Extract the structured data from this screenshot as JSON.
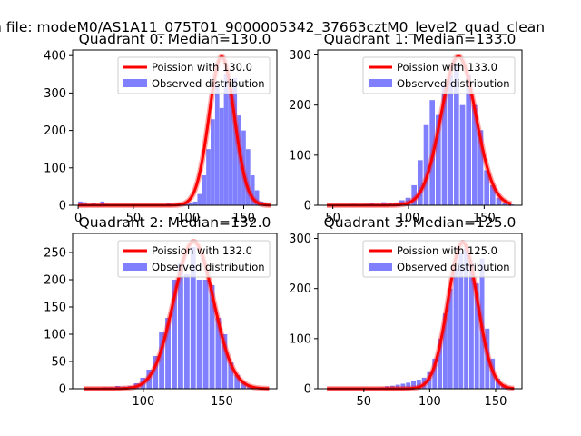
{
  "figure": {
    "suptitle": "n file: modeM0/AS1A11_075T01_9000005342_37663cztM0_level2_quad_clean"
  },
  "colors": {
    "hist": "#8080ff",
    "curve": "#ff0000"
  },
  "chart_data": [
    {
      "type": "bar",
      "title": "Quadrant 0: Median=130.0",
      "xlabel": "",
      "ylabel": "",
      "xlim": [
        -5,
        180
      ],
      "ylim": [
        0,
        415
      ],
      "xticks": [
        0,
        50,
        100,
        150
      ],
      "yticks": [
        0,
        100,
        200,
        300,
        400
      ],
      "grid": false,
      "legend_position": "upper right",
      "legend": [
        "Poission with 130.0",
        "Observed distribution"
      ],
      "series": [
        {
          "name": "Observed distribution",
          "kind": "histogram",
          "bin_width": 3.9,
          "x": [
            0,
            4,
            8,
            12,
            16,
            20,
            24,
            28,
            32,
            36,
            40,
            44,
            48,
            52,
            56,
            60,
            64,
            68,
            72,
            76,
            80,
            84,
            88,
            92,
            96,
            100,
            104,
            108,
            112,
            116,
            120,
            124,
            128,
            132,
            136,
            140,
            144,
            148,
            152,
            156,
            160,
            164,
            168,
            172
          ],
          "y": [
            10,
            8,
            3,
            5,
            2,
            10,
            4,
            2,
            2,
            2,
            2,
            2,
            2,
            2,
            2,
            2,
            2,
            2,
            2,
            2,
            6,
            3,
            3,
            3,
            4,
            5,
            10,
            30,
            80,
            150,
            230,
            320,
            260,
            350,
            300,
            340,
            240,
            200,
            150,
            80,
            40,
            10,
            4,
            1
          ]
        },
        {
          "name": "Poission with 130.0",
          "kind": "curve",
          "mean": 130.0,
          "peak": 397,
          "sigma": 11.4,
          "x_range": [
            0,
            175
          ]
        }
      ]
    },
    {
      "type": "bar",
      "title": "Quadrant 1: Median=133.0",
      "xlabel": "",
      "ylabel": "",
      "xlim": [
        40,
        175
      ],
      "ylim": [
        0,
        310
      ],
      "xticks": [
        50,
        100,
        150
      ],
      "yticks": [
        0,
        100,
        200,
        300
      ],
      "grid": false,
      "legend_position": "upper right",
      "legend": [
        "Poission with 133.0",
        "Observed distribution"
      ],
      "series": [
        {
          "name": "Observed distribution",
          "kind": "histogram",
          "bin_width": 3.4,
          "x": [
            46,
            50,
            54,
            58,
            62,
            66,
            70,
            74,
            78,
            82,
            86,
            90,
            94,
            98,
            102,
            106,
            110,
            114,
            118,
            122,
            126,
            130,
            134,
            138,
            142,
            146,
            150,
            154,
            158,
            162,
            166
          ],
          "y": [
            2,
            2,
            2,
            2,
            3,
            2,
            3,
            4,
            3,
            6,
            5,
            4,
            10,
            15,
            40,
            90,
            160,
            210,
            180,
            240,
            260,
            280,
            200,
            260,
            200,
            150,
            70,
            40,
            15,
            5,
            2
          ]
        },
        {
          "name": "Poission with 133.0",
          "kind": "curve",
          "mean": 133.0,
          "peak": 297,
          "sigma": 11.5,
          "x_range": [
            46,
            168
          ]
        }
      ]
    },
    {
      "type": "bar",
      "title": "Quadrant 2: Median=132.0",
      "xlabel": "",
      "ylabel": "",
      "xlim": [
        55,
        185
      ],
      "ylim": [
        0,
        285
      ],
      "xticks": [
        100,
        150
      ],
      "yticks": [
        0,
        50,
        100,
        150,
        200,
        250
      ],
      "grid": false,
      "legend_position": "upper right",
      "legend": [
        "Poission with 132.0",
        "Observed distribution"
      ],
      "series": [
        {
          "name": "Observed distribution",
          "kind": "histogram",
          "bin_width": 3.4,
          "x": [
            62,
            66,
            70,
            74,
            78,
            82,
            86,
            90,
            94,
            98,
            102,
            106,
            110,
            114,
            118,
            122,
            126,
            130,
            134,
            138,
            142,
            146,
            150,
            154,
            158,
            162,
            166,
            170,
            174,
            178
          ],
          "y": [
            2,
            2,
            2,
            3,
            3,
            5,
            4,
            5,
            10,
            20,
            35,
            60,
            105,
            130,
            200,
            230,
            210,
            260,
            200,
            200,
            190,
            130,
            100,
            50,
            25,
            12,
            6,
            3,
            2,
            1
          ]
        },
        {
          "name": "Poission with 132.0",
          "kind": "curve",
          "mean": 132.0,
          "peak": 270,
          "sigma": 12.6,
          "x_range": [
            62,
            180
          ]
        }
      ]
    },
    {
      "type": "bar",
      "title": "Quadrant 3: Median=125.0",
      "xlabel": "",
      "ylabel": "",
      "xlim": [
        15,
        170
      ],
      "ylim": [
        0,
        310
      ],
      "xticks": [
        50,
        100,
        150
      ],
      "yticks": [
        0,
        100,
        200,
        300
      ],
      "grid": false,
      "legend_position": "upper right",
      "legend": [
        "Poission with 125.0",
        "Observed distribution"
      ],
      "series": [
        {
          "name": "Observed distribution",
          "kind": "histogram",
          "bin_width": 3.4,
          "x": [
            22,
            26,
            30,
            34,
            38,
            42,
            46,
            50,
            54,
            58,
            62,
            66,
            70,
            74,
            78,
            82,
            86,
            90,
            94,
            98,
            102,
            106,
            110,
            114,
            118,
            122,
            126,
            130,
            134,
            138,
            142,
            146,
            150,
            154,
            158,
            162
          ],
          "y": [
            2,
            2,
            2,
            2,
            2,
            2,
            2,
            2,
            2,
            2,
            3,
            5,
            6,
            8,
            10,
            12,
            15,
            18,
            22,
            35,
            60,
            100,
            150,
            200,
            240,
            270,
            280,
            250,
            210,
            260,
            120,
            60,
            20,
            8,
            3,
            1
          ]
        },
        {
          "name": "Poission with 125.0",
          "kind": "curve",
          "mean": 125.0,
          "peak": 292,
          "sigma": 11.1,
          "x_range": [
            22,
            164
          ]
        }
      ]
    }
  ]
}
